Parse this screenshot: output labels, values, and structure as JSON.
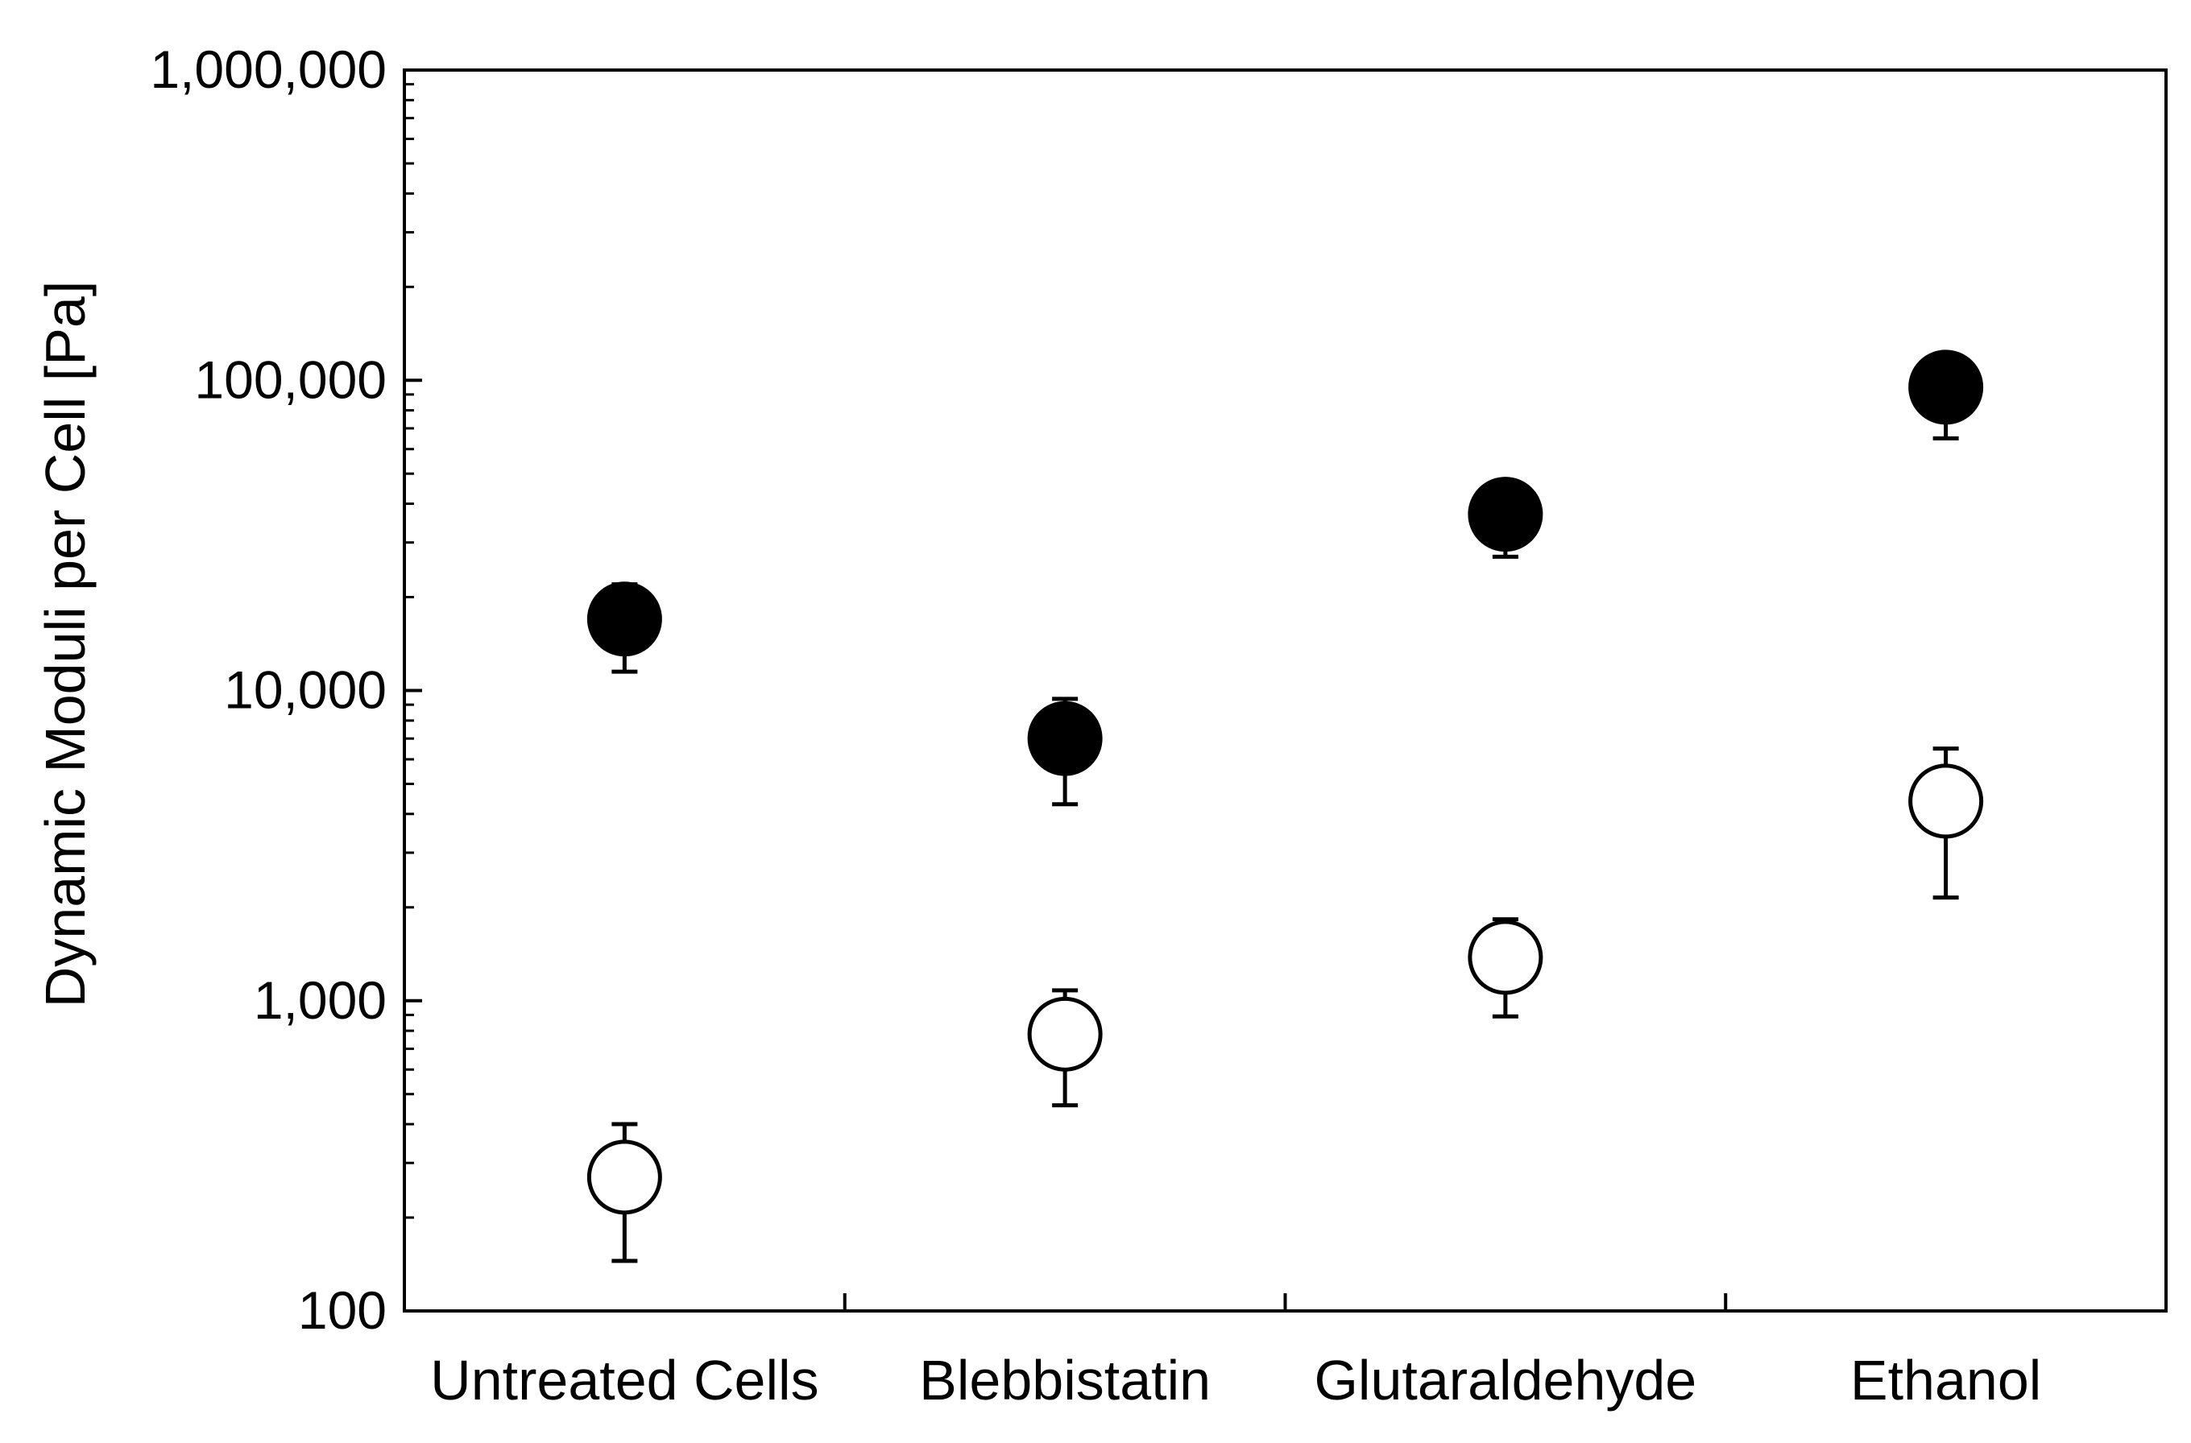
{
  "chart_data": {
    "type": "scatter",
    "yscale": "log",
    "ylim": [
      100,
      1000000
    ],
    "ylabel": "Dynamic Moduli per Cell [Pa]",
    "xlabel": "",
    "title": "",
    "grid": false,
    "legend": null,
    "categories": [
      "Untreated Cells",
      "Blebbistatin",
      "Glutaraldehyde",
      "Ethanol"
    ],
    "yticks": [
      100,
      1000,
      10000,
      100000,
      1000000
    ],
    "ytick_labels": [
      "100",
      "1,000",
      "10,000",
      "100,000",
      "1,000,000"
    ],
    "series": [
      {
        "name": "filled",
        "marker": "filled-circle",
        "color": "#000000",
        "values": [
          17000,
          7000,
          37000,
          95000
        ],
        "error_low": [
          11500,
          4300,
          27000,
          65000
        ],
        "error_high": [
          22000,
          9400,
          37000,
          95000
        ]
      },
      {
        "name": "open",
        "marker": "open-circle",
        "color": "#000000",
        "values": [
          270,
          780,
          1380,
          4400
        ],
        "error_low": [
          145,
          460,
          890,
          2150
        ],
        "error_high": [
          400,
          1080,
          1830,
          6500
        ]
      }
    ]
  }
}
